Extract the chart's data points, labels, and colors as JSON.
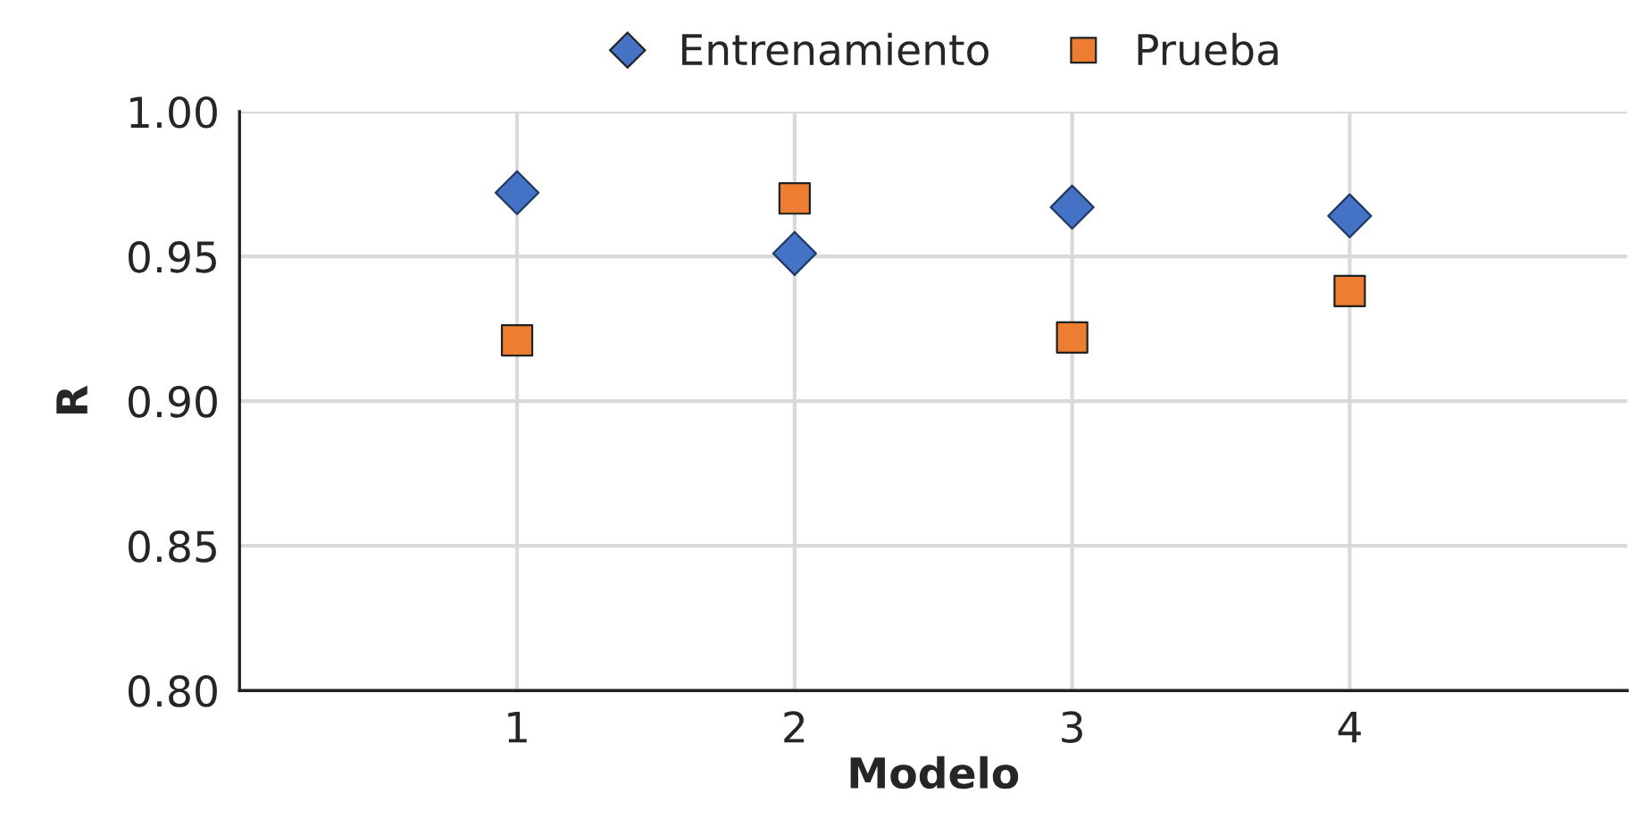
{
  "chart_data": {
    "type": "scatter",
    "xlabel": "Modelo",
    "ylabel": "R",
    "x": [
      1,
      2,
      3,
      4
    ],
    "series": [
      {
        "name": "Entrenamiento",
        "color": "#4472c4",
        "marker": "diamond",
        "values": [
          0.972,
          0.951,
          0.967,
          0.964
        ]
      },
      {
        "name": "Prueba",
        "color": "#ed7d31",
        "marker": "square",
        "values": [
          0.921,
          0.97,
          0.922,
          0.938
        ]
      }
    ],
    "xlim": [
      0,
      5
    ],
    "xticks": [
      1,
      2,
      3,
      4
    ],
    "ylim": [
      0.8,
      1.0
    ],
    "yticks": [
      {
        "value": 0.8,
        "label": "0.80"
      },
      {
        "value": 0.85,
        "label": "0.85"
      },
      {
        "value": 0.9,
        "label": "0.90"
      },
      {
        "value": 0.95,
        "label": "0.95"
      },
      {
        "value": 1.0,
        "label": "1.00"
      }
    ],
    "grid": true,
    "legend": "top"
  }
}
